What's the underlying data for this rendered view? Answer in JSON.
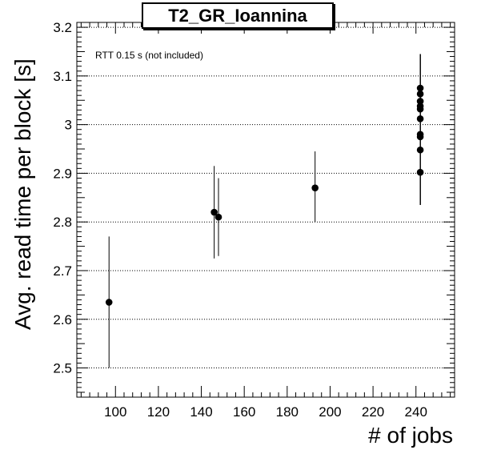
{
  "chart_data": {
    "type": "scatter",
    "title": "T2_GR_Ioannina",
    "xlabel": "# of jobs",
    "ylabel": "Avg. read time per block [s]",
    "annotation": "RTT 0.15 s (not included)",
    "xlim": [
      82,
      258
    ],
    "ylim": [
      2.44,
      3.21
    ],
    "xticks": [
      "100",
      "120",
      "140",
      "160",
      "180",
      "200",
      "220",
      "240"
    ],
    "yticks": [
      "2.5",
      "2.6",
      "2.7",
      "2.8",
      "2.9",
      "3",
      "3.1",
      "3.2"
    ],
    "grid": "horizontal dotted",
    "points": [
      {
        "x": 97,
        "y": 2.635,
        "err_low": 2.5,
        "err_high": 2.77
      },
      {
        "x": 146,
        "y": 2.82,
        "err_low": 2.725,
        "err_high": 2.915
      },
      {
        "x": 148,
        "y": 2.81,
        "err_low": 2.73,
        "err_high": 2.89
      },
      {
        "x": 193,
        "y": 2.87,
        "err_low": 2.8,
        "err_high": 2.945
      },
      {
        "x": 242,
        "y": 3.075,
        "err_low": 2.835,
        "err_high": 3.145
      },
      {
        "x": 242,
        "y": 3.063,
        "err_low": 2.835,
        "err_high": 3.145
      },
      {
        "x": 242,
        "y": 3.048,
        "err_low": 2.835,
        "err_high": 3.145
      },
      {
        "x": 242,
        "y": 3.038,
        "err_low": 2.835,
        "err_high": 3.145
      },
      {
        "x": 242,
        "y": 3.032,
        "err_low": 2.835,
        "err_high": 3.145
      },
      {
        "x": 242,
        "y": 3.012,
        "err_low": 2.835,
        "err_high": 3.145
      },
      {
        "x": 242,
        "y": 2.98,
        "err_low": 2.835,
        "err_high": 3.145
      },
      {
        "x": 242,
        "y": 2.975,
        "err_low": 2.835,
        "err_high": 3.145
      },
      {
        "x": 242,
        "y": 2.948,
        "err_low": 2.835,
        "err_high": 3.145
      },
      {
        "x": 242,
        "y": 2.902,
        "err_low": 2.835,
        "err_high": 3.145
      }
    ]
  }
}
